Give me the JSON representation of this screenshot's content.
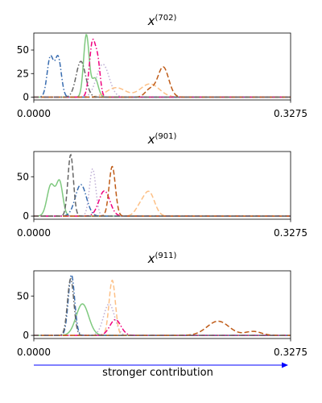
{
  "chart_data": [
    {
      "type": "line",
      "title_base": "x",
      "title_sup": "(702)",
      "xlim": [
        0,
        0.3275
      ],
      "ylim": [
        -3,
        68
      ],
      "xticks": [
        "0.0000",
        "0.3275"
      ],
      "yticks": [
        0,
        25,
        50
      ],
      "series": [
        {
          "color": "#7fc97f",
          "dash": "solid",
          "peaks": [
            {
              "c": 0.067,
              "a": 66,
              "w": 0.0035
            },
            {
              "c": 0.078,
              "a": 20,
              "w": 0.004
            }
          ]
        },
        {
          "color": "#beaed4",
          "dash": "dot",
          "peaks": [
            {
              "c": 0.088,
              "a": 35,
              "w": 0.008
            }
          ]
        },
        {
          "color": "#fdc086",
          "dash": "dash",
          "peaks": [
            {
              "c": 0.105,
              "a": 10,
              "w": 0.012
            },
            {
              "c": 0.148,
              "a": 14,
              "w": 0.012
            }
          ]
        },
        {
          "color": "#386cb0",
          "dash": "dashdot",
          "peaks": [
            {
              "c": 0.021,
              "a": 42,
              "w": 0.004
            },
            {
              "c": 0.031,
              "a": 42,
              "w": 0.004
            }
          ]
        },
        {
          "color": "#f0027f",
          "dash": "dashdot",
          "peaks": [
            {
              "c": 0.075,
              "a": 59,
              "w": 0.004
            },
            {
              "c": 0.082,
              "a": 30,
              "w": 0.003
            }
          ]
        },
        {
          "color": "#bf5b17",
          "dash": "dash",
          "peaks": [
            {
              "c": 0.165,
              "a": 32,
              "w": 0.007
            },
            {
              "c": 0.148,
              "a": 8,
              "w": 0.006
            }
          ]
        },
        {
          "color": "#666666",
          "dash": "dashdot",
          "peaks": [
            {
              "c": 0.06,
              "a": 38,
              "w": 0.006
            }
          ]
        }
      ]
    },
    {
      "type": "line",
      "title_base": "x",
      "title_sup": "(901)",
      "xlim": [
        0,
        0.3275
      ],
      "ylim": [
        -4,
        82
      ],
      "xticks": [
        "0.0000",
        "0.3275"
      ],
      "yticks": [
        0,
        50
      ],
      "series": [
        {
          "color": "#7fc97f",
          "dash": "solid",
          "peaks": [
            {
              "c": 0.022,
              "a": 40,
              "w": 0.005
            },
            {
              "c": 0.033,
              "a": 42,
              "w": 0.004
            }
          ]
        },
        {
          "color": "#beaed4",
          "dash": "dot",
          "peaks": [
            {
              "c": 0.075,
              "a": 60,
              "w": 0.004
            }
          ]
        },
        {
          "color": "#fdc086",
          "dash": "dash",
          "peaks": [
            {
              "c": 0.147,
              "a": 30,
              "w": 0.007
            },
            {
              "c": 0.135,
              "a": 10,
              "w": 0.006
            }
          ]
        },
        {
          "color": "#386cb0",
          "dash": "dashdot",
          "peaks": [
            {
              "c": 0.06,
              "a": 40,
              "w": 0.007
            }
          ]
        },
        {
          "color": "#f0027f",
          "dash": "dashdot",
          "peaks": [
            {
              "c": 0.09,
              "a": 32,
              "w": 0.007
            }
          ]
        },
        {
          "color": "#bf5b17",
          "dash": "dash",
          "peaks": [
            {
              "c": 0.1,
              "a": 63,
              "w": 0.004
            }
          ]
        },
        {
          "color": "#666666",
          "dash": "dash",
          "peaks": [
            {
              "c": 0.047,
              "a": 78,
              "w": 0.0035
            }
          ]
        }
      ]
    },
    {
      "type": "line",
      "title_base": "x",
      "title_sup": "(911)",
      "xlim": [
        0,
        0.3275
      ],
      "ylim": [
        -4,
        82
      ],
      "xticks": [
        "0.0000",
        "0.3275"
      ],
      "yticks": [
        0,
        50
      ],
      "series": [
        {
          "color": "#7fc97f",
          "dash": "solid",
          "peaks": [
            {
              "c": 0.062,
              "a": 40,
              "w": 0.008
            }
          ]
        },
        {
          "color": "#beaed4",
          "dash": "dot",
          "peaks": [
            {
              "c": 0.096,
              "a": 40,
              "w": 0.007
            }
          ]
        },
        {
          "color": "#fdc086",
          "dash": "dash",
          "peaks": [
            {
              "c": 0.1,
              "a": 70,
              "w": 0.004
            }
          ]
        },
        {
          "color": "#386cb0",
          "dash": "dashdot",
          "peaks": [
            {
              "c": 0.048,
              "a": 77,
              "w": 0.004
            }
          ]
        },
        {
          "color": "#f0027f",
          "dash": "dashdot",
          "peaks": [
            {
              "c": 0.104,
              "a": 20,
              "w": 0.007
            }
          ]
        },
        {
          "color": "#bf5b17",
          "dash": "dash",
          "peaks": [
            {
              "c": 0.235,
              "a": 18,
              "w": 0.014
            },
            {
              "c": 0.28,
              "a": 5,
              "w": 0.01
            }
          ]
        },
        {
          "color": "#666666",
          "dash": "dashdot",
          "peaks": [
            {
              "c": 0.047,
              "a": 72,
              "w": 0.004
            }
          ]
        }
      ]
    }
  ],
  "footer": {
    "arrow_label": "stronger contribution",
    "arrow_color": "#0000ff"
  }
}
